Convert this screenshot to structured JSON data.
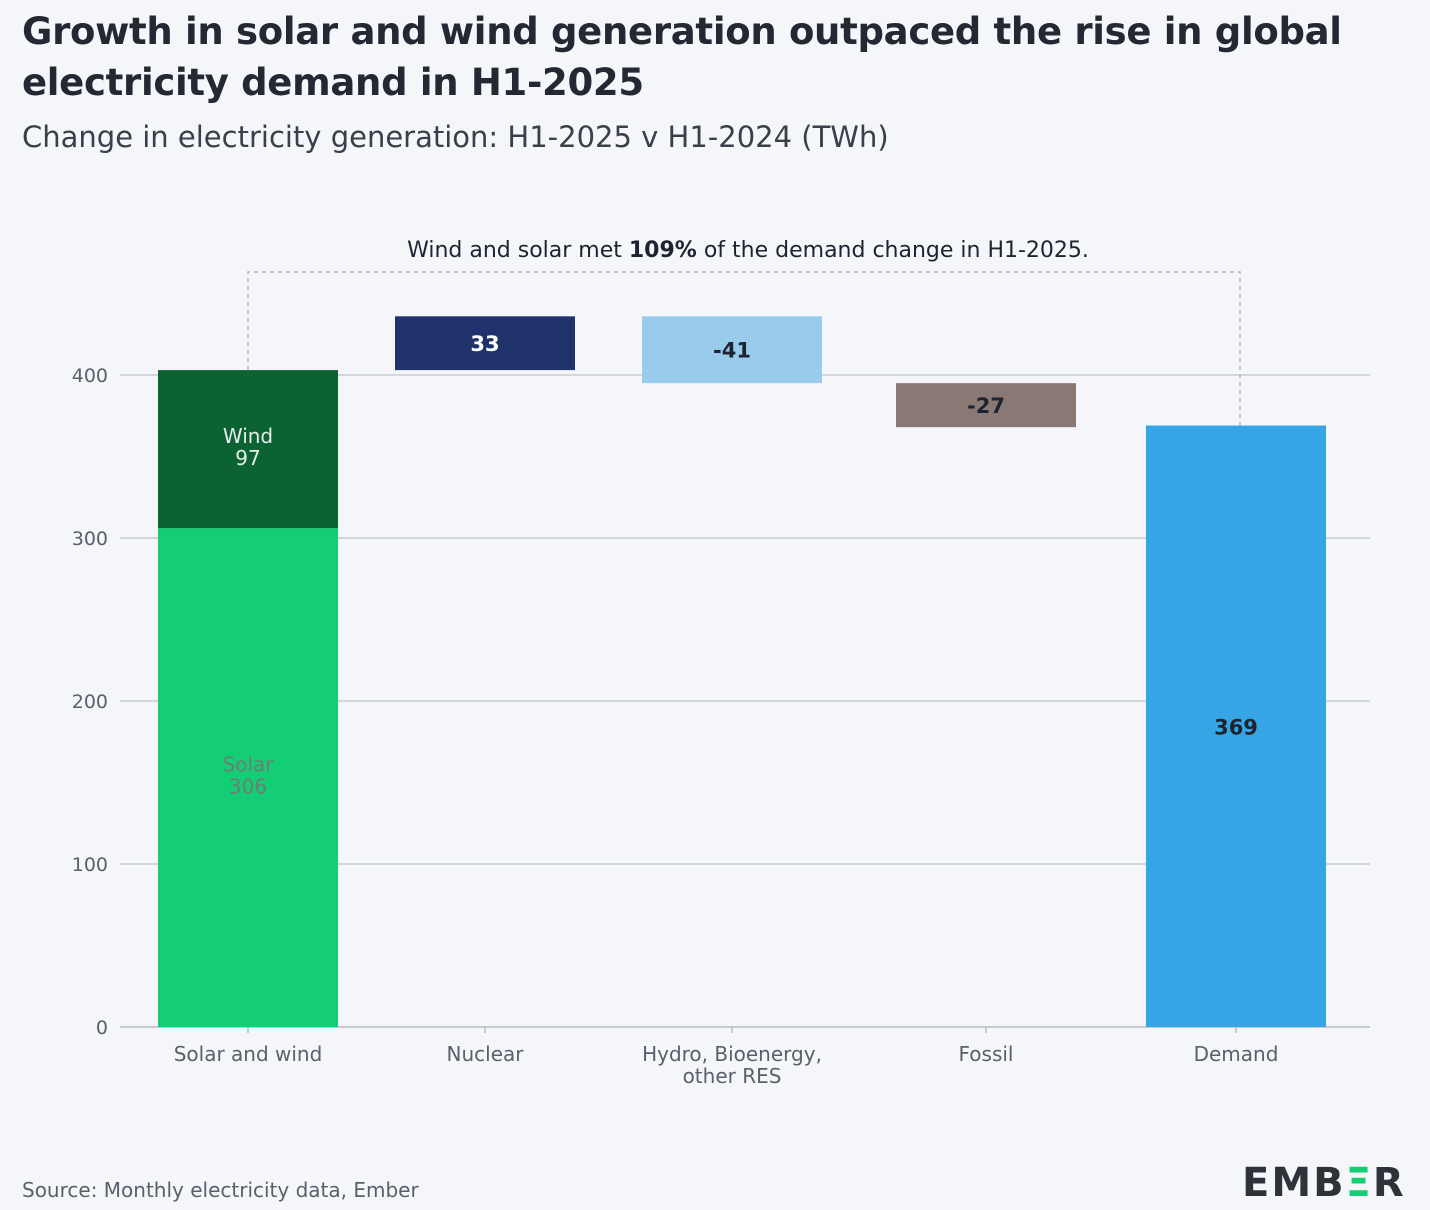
{
  "title": "Growth in solar and wind generation outpaced the rise in global electricity demand in H1-2025",
  "subtitle": "Change in electricity generation: H1-2025 v H1-2024 (TWh)",
  "source": "Source: Monthly electricity data, Ember",
  "logo": "EMBER",
  "chart_data": {
    "type": "waterfall",
    "title": "Growth in solar and wind generation outpaced the rise in global electricity demand in H1-2025",
    "subtitle": "Change in electricity generation: H1-2025 v H1-2024 (TWh)",
    "ylim": [
      0,
      400
    ],
    "yticks": [
      0,
      100,
      200,
      300,
      400
    ],
    "grid": true,
    "categories": [
      "Solar and wind",
      "Nuclear",
      "Hydro, Bioenergy, other RES",
      "Fossil",
      "Demand"
    ],
    "category_lines": [
      [
        "Solar and wind"
      ],
      [
        "Nuclear"
      ],
      [
        "Hydro, Bioenergy,",
        "other RES"
      ],
      [
        "Fossil"
      ],
      [
        "Demand"
      ]
    ],
    "bars": [
      {
        "category": "Solar and wind",
        "segments": [
          {
            "name": "Solar",
            "value": 306,
            "color": "#13ce74",
            "label_color": "#6b7f74"
          },
          {
            "name": "Wind",
            "value": 97,
            "color": "#0b6334",
            "label_color": "#e6ece8"
          }
        ]
      },
      {
        "category": "Nuclear",
        "value": 33,
        "color": "#1f326b",
        "label_color": "#ffffff"
      },
      {
        "category": "Hydro, Bioenergy, other RES",
        "value": -41,
        "color": "#99ccec",
        "label_color": "#1e2330"
      },
      {
        "category": "Fossil",
        "value": -27,
        "color": "#8a7874",
        "label_color": "#1e2330"
      },
      {
        "category": "Demand",
        "value": 369,
        "total": true,
        "color": "#36a5e5",
        "label_color": "#1e2330"
      }
    ],
    "annotation": {
      "prefix": "Wind and solar met ",
      "bold": "109%",
      "suffix": " of the demand change in H1-2025."
    }
  }
}
